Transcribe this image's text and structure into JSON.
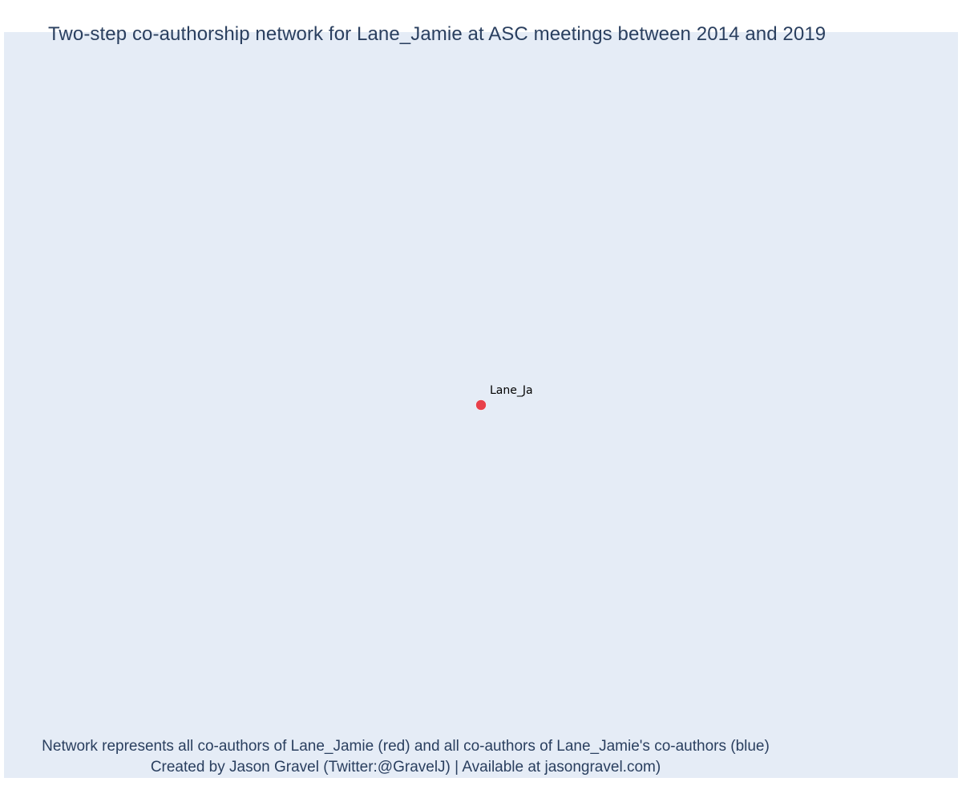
{
  "title": "Two-step co-authorship network for Lane_Jamie at ASC meetings between 2014 and 2019",
  "caption": {
    "line1": "Network represents all co-authors of Lane_Jamie (red) and all co-authors of Lane_Jamie's co-authors (blue)",
    "line2": "Created by Jason Gravel (Twitter:@GravelJ) | Available at jasongravel.com)"
  },
  "colors": {
    "background": "#e5ecf6",
    "focal_node": "#e8404a",
    "text": "#2a3f5f"
  },
  "nodes": [
    {
      "id": "Lane_Jamie",
      "label": "Lane_Ja",
      "role": "focal",
      "color": "#e8404a"
    }
  ],
  "edges": []
}
